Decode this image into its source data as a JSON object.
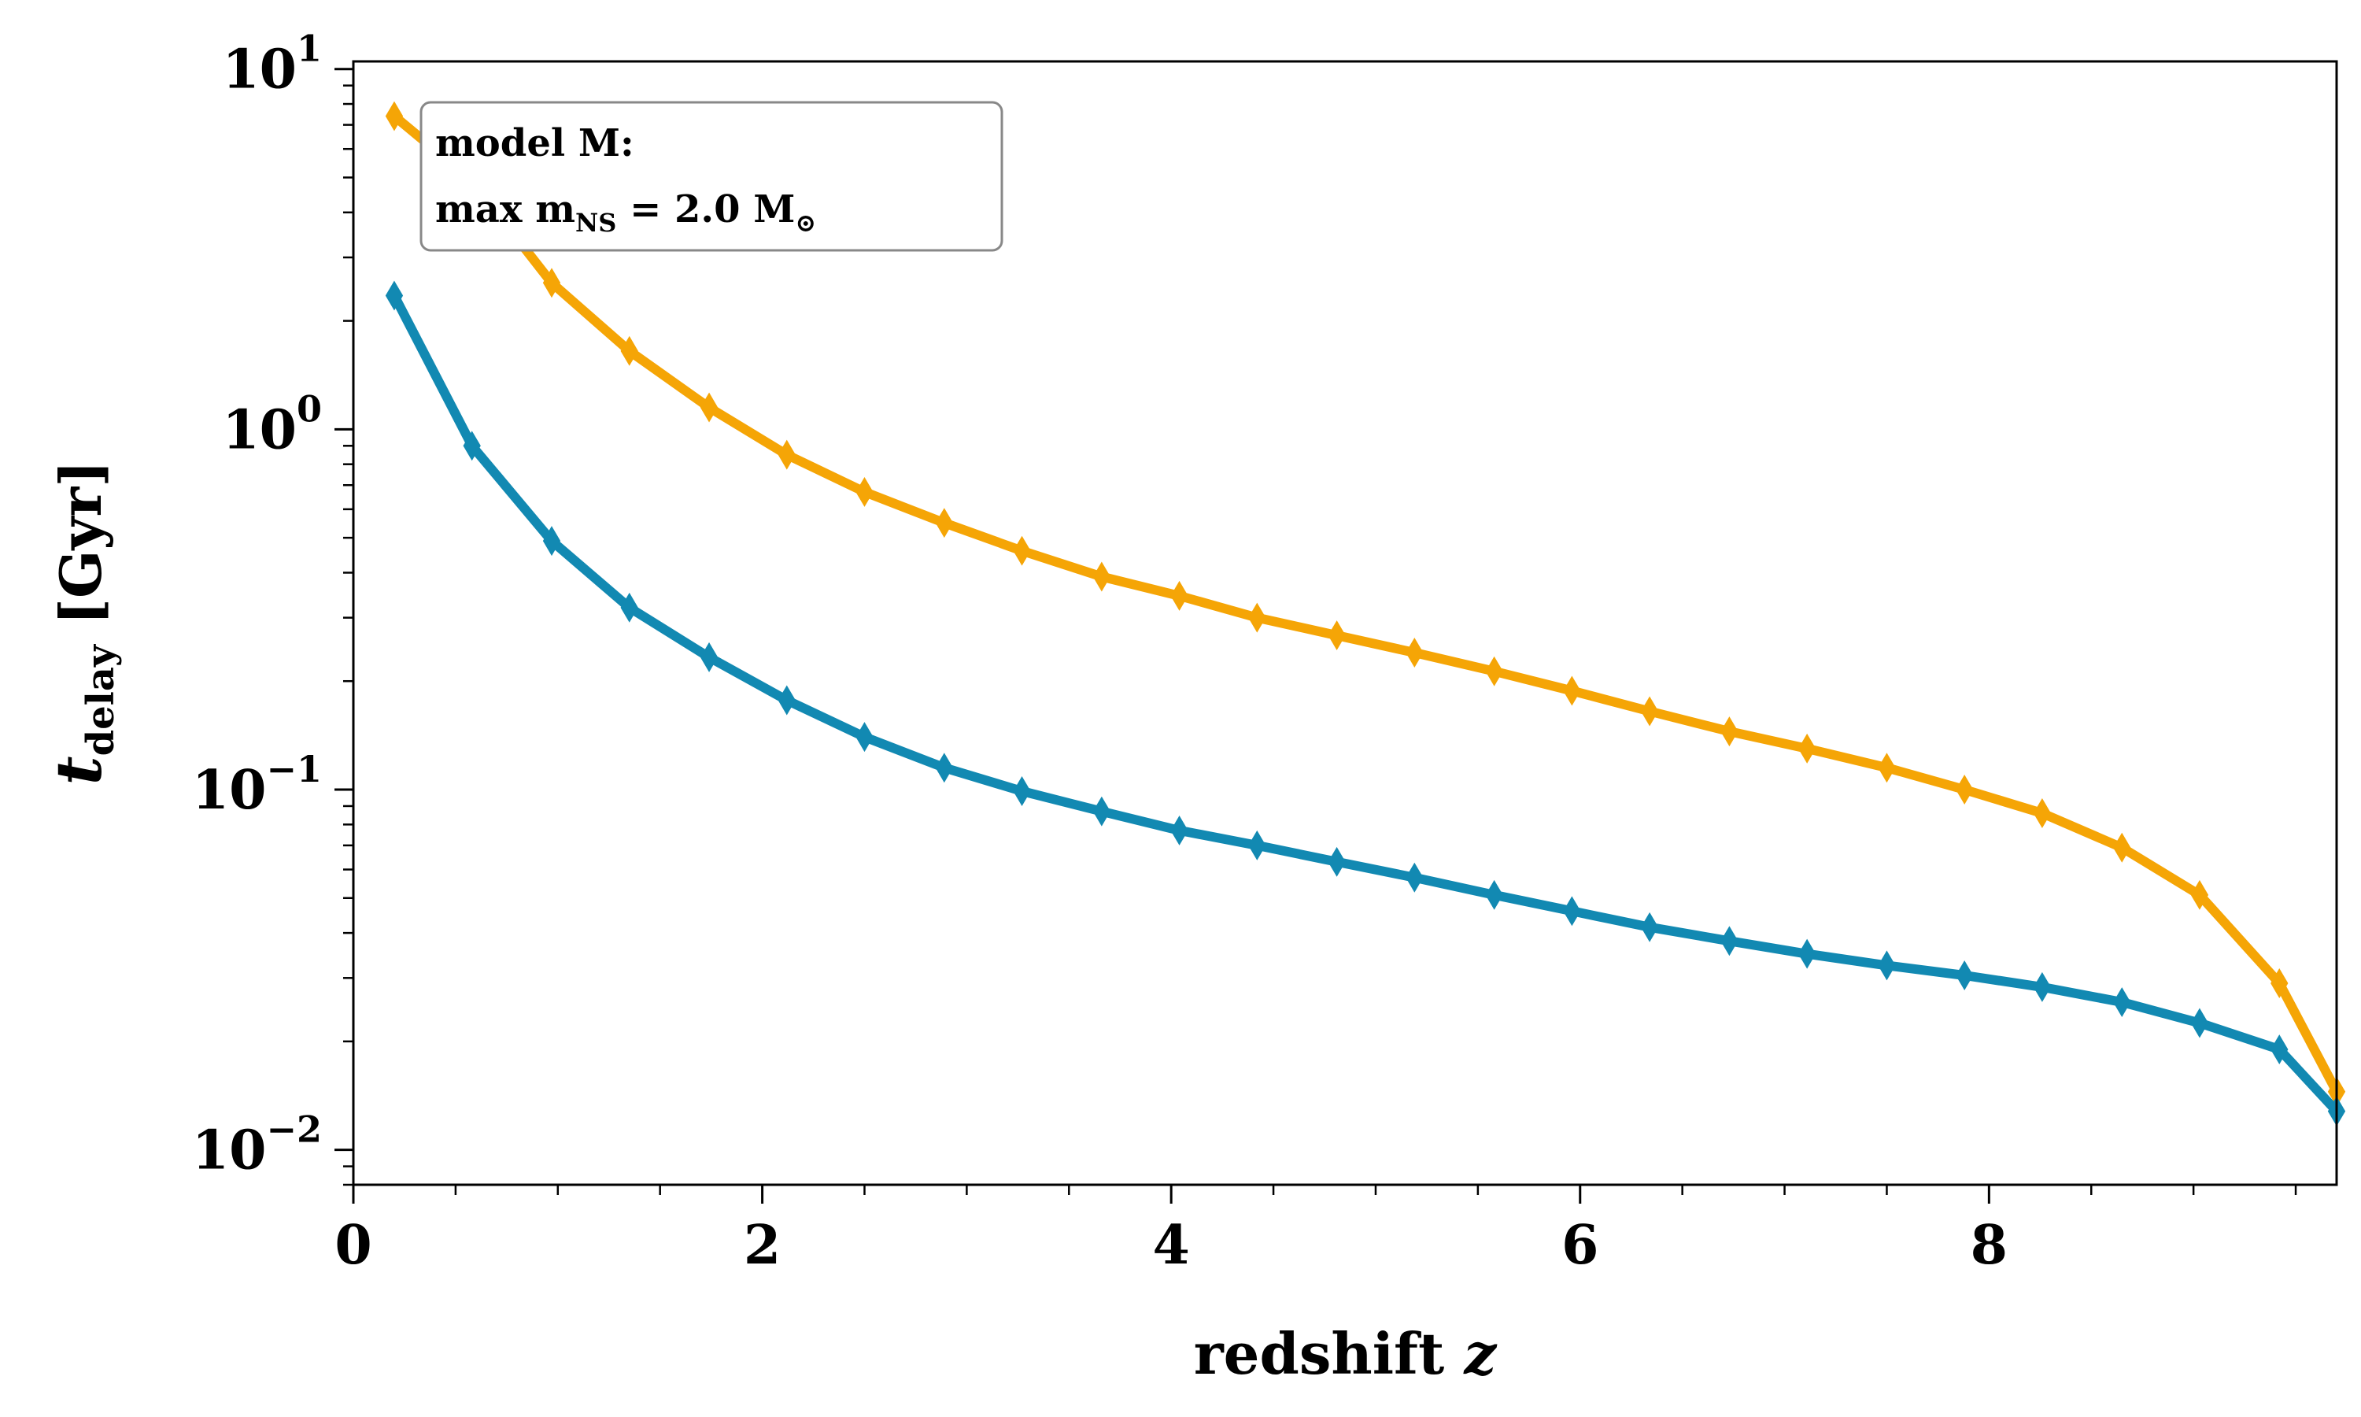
{
  "chart_data": {
    "type": "line",
    "xlabel": {
      "text": "redshift ",
      "var": "z"
    },
    "ylabel": {
      "var": "t",
      "sub": "delay",
      "unit": " [Gyr]"
    },
    "xlim": [
      0,
      9.7
    ],
    "ylim": [
      0.008,
      10.5
    ],
    "yscale": "log",
    "grid": false,
    "x_ticks": [
      {
        "value": 0,
        "label": "0"
      },
      {
        "value": 2,
        "label": "2"
      },
      {
        "value": 4,
        "label": "4"
      },
      {
        "value": 6,
        "label": "6"
      },
      {
        "value": 8,
        "label": "8"
      }
    ],
    "y_ticks": [
      {
        "value": 10,
        "base": "10",
        "exp": "1"
      },
      {
        "value": 1,
        "base": "10",
        "exp": "0"
      },
      {
        "value": 0.1,
        "base": "10",
        "exp": "−1"
      },
      {
        "value": 0.01,
        "base": "10",
        "exp": "−2"
      }
    ],
    "annotation": {
      "line1": "model M:",
      "line2_prefix": "max m",
      "line2_sub": "NS",
      "line2_suffix": " = 2.0 M",
      "line2_sun": "⊙"
    },
    "x": [
      0.2,
      0.58,
      0.97,
      1.35,
      1.74,
      2.12,
      2.5,
      2.89,
      3.27,
      3.66,
      4.04,
      4.42,
      4.81,
      5.19,
      5.58,
      5.96,
      6.34,
      6.73,
      7.11,
      7.5,
      7.88,
      8.26,
      8.65,
      9.03,
      9.42,
      9.7
    ],
    "series": [
      {
        "color": "#f5a506",
        "values": [
          7.4,
          4.9,
          2.55,
          1.65,
          1.15,
          0.85,
          0.67,
          0.55,
          0.46,
          0.39,
          0.345,
          0.3,
          0.268,
          0.24,
          0.213,
          0.188,
          0.165,
          0.145,
          0.13,
          0.115,
          0.1,
          0.086,
          0.069,
          0.051,
          0.029,
          0.0145
        ]
      },
      {
        "color": "#1289b2",
        "values": [
          2.35,
          0.9,
          0.49,
          0.32,
          0.233,
          0.177,
          0.14,
          0.115,
          0.099,
          0.087,
          0.077,
          0.07,
          0.063,
          0.057,
          0.051,
          0.046,
          0.0415,
          0.038,
          0.035,
          0.0325,
          0.0305,
          0.0283,
          0.0257,
          0.0225,
          0.019,
          0.0128
        ]
      }
    ]
  }
}
